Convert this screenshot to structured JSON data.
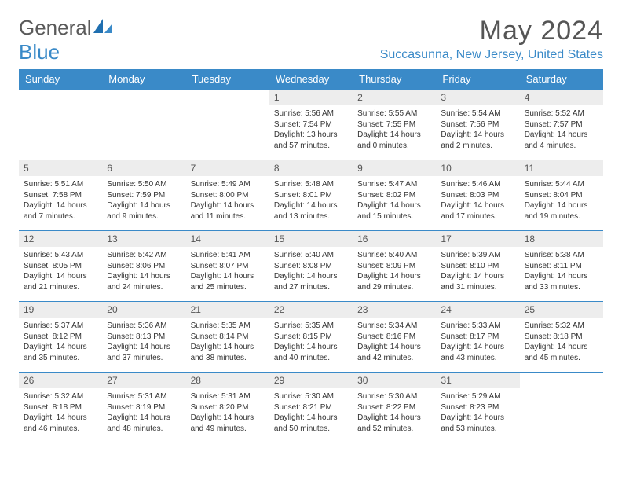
{
  "brand": {
    "part1": "General",
    "part2": "Blue"
  },
  "title": "May 2024",
  "location": "Succasunna, New Jersey, United States",
  "colors": {
    "accent": "#3a8ac8",
    "header_text": "#ffffff",
    "daynum_bg": "#ededed",
    "border": "#3a8ac8",
    "text": "#333333",
    "title": "#555555"
  },
  "days_of_week": [
    "Sunday",
    "Monday",
    "Tuesday",
    "Wednesday",
    "Thursday",
    "Friday",
    "Saturday"
  ],
  "weeks": [
    [
      null,
      null,
      null,
      {
        "n": "1",
        "sr": "Sunrise: 5:56 AM",
        "ss": "Sunset: 7:54 PM",
        "dl": "Daylight: 13 hours and 57 minutes."
      },
      {
        "n": "2",
        "sr": "Sunrise: 5:55 AM",
        "ss": "Sunset: 7:55 PM",
        "dl": "Daylight: 14 hours and 0 minutes."
      },
      {
        "n": "3",
        "sr": "Sunrise: 5:54 AM",
        "ss": "Sunset: 7:56 PM",
        "dl": "Daylight: 14 hours and 2 minutes."
      },
      {
        "n": "4",
        "sr": "Sunrise: 5:52 AM",
        "ss": "Sunset: 7:57 PM",
        "dl": "Daylight: 14 hours and 4 minutes."
      }
    ],
    [
      {
        "n": "5",
        "sr": "Sunrise: 5:51 AM",
        "ss": "Sunset: 7:58 PM",
        "dl": "Daylight: 14 hours and 7 minutes."
      },
      {
        "n": "6",
        "sr": "Sunrise: 5:50 AM",
        "ss": "Sunset: 7:59 PM",
        "dl": "Daylight: 14 hours and 9 minutes."
      },
      {
        "n": "7",
        "sr": "Sunrise: 5:49 AM",
        "ss": "Sunset: 8:00 PM",
        "dl": "Daylight: 14 hours and 11 minutes."
      },
      {
        "n": "8",
        "sr": "Sunrise: 5:48 AM",
        "ss": "Sunset: 8:01 PM",
        "dl": "Daylight: 14 hours and 13 minutes."
      },
      {
        "n": "9",
        "sr": "Sunrise: 5:47 AM",
        "ss": "Sunset: 8:02 PM",
        "dl": "Daylight: 14 hours and 15 minutes."
      },
      {
        "n": "10",
        "sr": "Sunrise: 5:46 AM",
        "ss": "Sunset: 8:03 PM",
        "dl": "Daylight: 14 hours and 17 minutes."
      },
      {
        "n": "11",
        "sr": "Sunrise: 5:44 AM",
        "ss": "Sunset: 8:04 PM",
        "dl": "Daylight: 14 hours and 19 minutes."
      }
    ],
    [
      {
        "n": "12",
        "sr": "Sunrise: 5:43 AM",
        "ss": "Sunset: 8:05 PM",
        "dl": "Daylight: 14 hours and 21 minutes."
      },
      {
        "n": "13",
        "sr": "Sunrise: 5:42 AM",
        "ss": "Sunset: 8:06 PM",
        "dl": "Daylight: 14 hours and 24 minutes."
      },
      {
        "n": "14",
        "sr": "Sunrise: 5:41 AM",
        "ss": "Sunset: 8:07 PM",
        "dl": "Daylight: 14 hours and 25 minutes."
      },
      {
        "n": "15",
        "sr": "Sunrise: 5:40 AM",
        "ss": "Sunset: 8:08 PM",
        "dl": "Daylight: 14 hours and 27 minutes."
      },
      {
        "n": "16",
        "sr": "Sunrise: 5:40 AM",
        "ss": "Sunset: 8:09 PM",
        "dl": "Daylight: 14 hours and 29 minutes."
      },
      {
        "n": "17",
        "sr": "Sunrise: 5:39 AM",
        "ss": "Sunset: 8:10 PM",
        "dl": "Daylight: 14 hours and 31 minutes."
      },
      {
        "n": "18",
        "sr": "Sunrise: 5:38 AM",
        "ss": "Sunset: 8:11 PM",
        "dl": "Daylight: 14 hours and 33 minutes."
      }
    ],
    [
      {
        "n": "19",
        "sr": "Sunrise: 5:37 AM",
        "ss": "Sunset: 8:12 PM",
        "dl": "Daylight: 14 hours and 35 minutes."
      },
      {
        "n": "20",
        "sr": "Sunrise: 5:36 AM",
        "ss": "Sunset: 8:13 PM",
        "dl": "Daylight: 14 hours and 37 minutes."
      },
      {
        "n": "21",
        "sr": "Sunrise: 5:35 AM",
        "ss": "Sunset: 8:14 PM",
        "dl": "Daylight: 14 hours and 38 minutes."
      },
      {
        "n": "22",
        "sr": "Sunrise: 5:35 AM",
        "ss": "Sunset: 8:15 PM",
        "dl": "Daylight: 14 hours and 40 minutes."
      },
      {
        "n": "23",
        "sr": "Sunrise: 5:34 AM",
        "ss": "Sunset: 8:16 PM",
        "dl": "Daylight: 14 hours and 42 minutes."
      },
      {
        "n": "24",
        "sr": "Sunrise: 5:33 AM",
        "ss": "Sunset: 8:17 PM",
        "dl": "Daylight: 14 hours and 43 minutes."
      },
      {
        "n": "25",
        "sr": "Sunrise: 5:32 AM",
        "ss": "Sunset: 8:18 PM",
        "dl": "Daylight: 14 hours and 45 minutes."
      }
    ],
    [
      {
        "n": "26",
        "sr": "Sunrise: 5:32 AM",
        "ss": "Sunset: 8:18 PM",
        "dl": "Daylight: 14 hours and 46 minutes."
      },
      {
        "n": "27",
        "sr": "Sunrise: 5:31 AM",
        "ss": "Sunset: 8:19 PM",
        "dl": "Daylight: 14 hours and 48 minutes."
      },
      {
        "n": "28",
        "sr": "Sunrise: 5:31 AM",
        "ss": "Sunset: 8:20 PM",
        "dl": "Daylight: 14 hours and 49 minutes."
      },
      {
        "n": "29",
        "sr": "Sunrise: 5:30 AM",
        "ss": "Sunset: 8:21 PM",
        "dl": "Daylight: 14 hours and 50 minutes."
      },
      {
        "n": "30",
        "sr": "Sunrise: 5:30 AM",
        "ss": "Sunset: 8:22 PM",
        "dl": "Daylight: 14 hours and 52 minutes."
      },
      {
        "n": "31",
        "sr": "Sunrise: 5:29 AM",
        "ss": "Sunset: 8:23 PM",
        "dl": "Daylight: 14 hours and 53 minutes."
      },
      null
    ]
  ]
}
